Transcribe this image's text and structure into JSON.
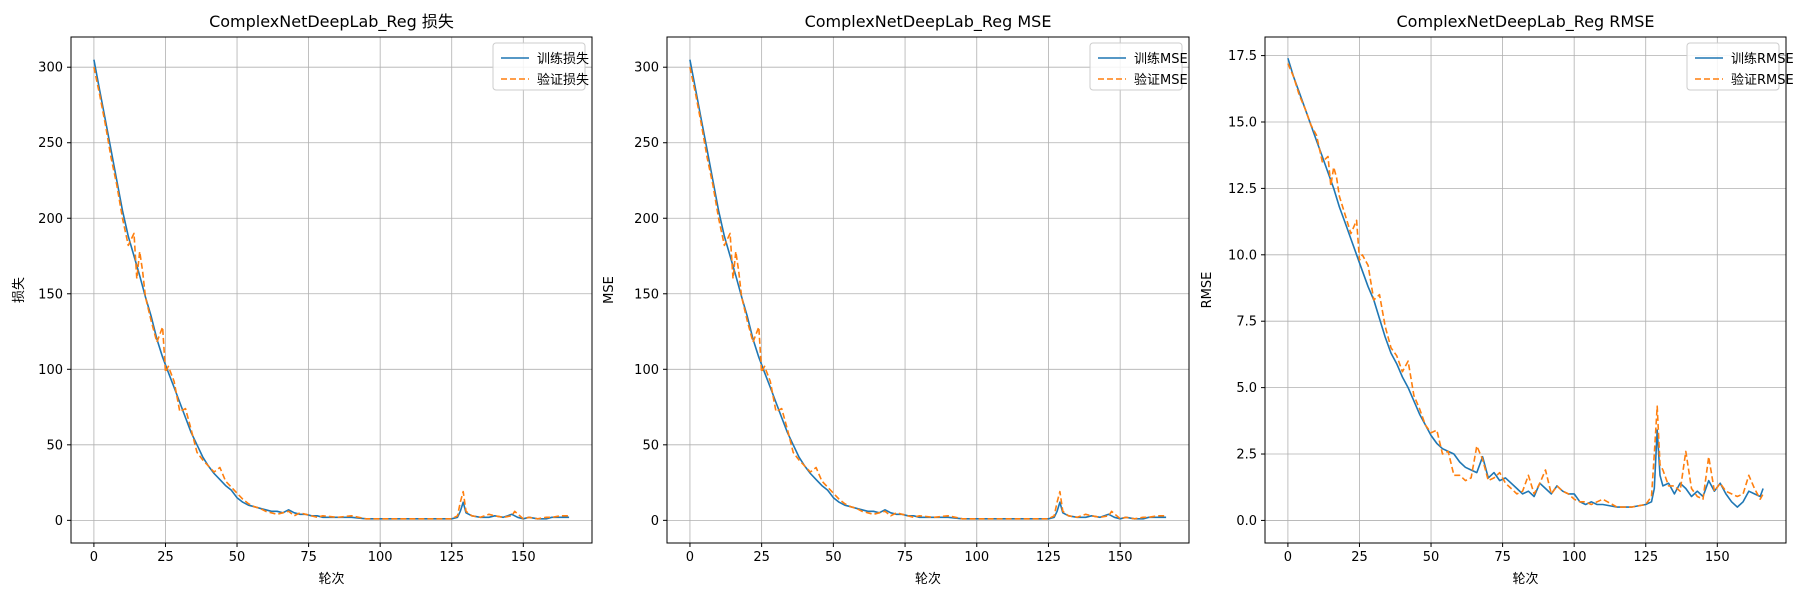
{
  "colors": {
    "series_a": "#1f77b4",
    "series_b": "#ff7f0e",
    "grid": "#b0b0b0",
    "axes": "#000000"
  },
  "chart_data": [
    {
      "type": "line",
      "title": "ComplexNetDeepLab_Reg 损失",
      "xlabel": "轮次",
      "ylabel": "损失",
      "xlim": [
        -8,
        174
      ],
      "ylim": [
        -15,
        320
      ],
      "xticks": [
        0,
        25,
        50,
        75,
        100,
        125,
        150
      ],
      "yticks": [
        0,
        50,
        100,
        150,
        200,
        250,
        300
      ],
      "grid": true,
      "legend": "top-right",
      "series": [
        {
          "name": "训练损失",
          "style": "solid",
          "x": [
            0,
            2,
            4,
            6,
            8,
            10,
            12,
            14,
            16,
            18,
            20,
            22,
            24,
            26,
            28,
            30,
            32,
            34,
            36,
            38,
            40,
            42,
            44,
            46,
            48,
            50,
            52,
            54,
            56,
            58,
            60,
            62,
            64,
            66,
            68,
            70,
            72,
            74,
            76,
            78,
            80,
            85,
            90,
            95,
            100,
            105,
            110,
            115,
            120,
            125,
            127,
            128,
            129,
            130,
            132,
            135,
            138,
            140,
            143,
            146,
            148,
            150,
            152,
            155,
            158,
            160,
            163,
            166
          ],
          "y": [
            305,
            285,
            265,
            245,
            225,
            205,
            188,
            175,
            162,
            148,
            135,
            120,
            108,
            98,
            88,
            78,
            68,
            58,
            50,
            42,
            36,
            31,
            27,
            23,
            20,
            15,
            12,
            10,
            9,
            8,
            7,
            6,
            6,
            5,
            7,
            5,
            4,
            4,
            3,
            3,
            2,
            2,
            2,
            1,
            1,
            1,
            1,
            1,
            1,
            1,
            2,
            6,
            12,
            5,
            3,
            2,
            2,
            3,
            2,
            4,
            2,
            1,
            2,
            1,
            1,
            2,
            2,
            2
          ]
        },
        {
          "name": "验证损失",
          "style": "dashed",
          "x": [
            0,
            2,
            4,
            6,
            8,
            10,
            12,
            14,
            15,
            16,
            17,
            18,
            20,
            22,
            24,
            25,
            26,
            28,
            30,
            32,
            34,
            36,
            38,
            40,
            42,
            44,
            46,
            48,
            50,
            52,
            54,
            56,
            58,
            60,
            62,
            64,
            66,
            68,
            70,
            72,
            74,
            76,
            78,
            80,
            85,
            90,
            95,
            100,
            105,
            110,
            115,
            120,
            125,
            127,
            128,
            129,
            130,
            132,
            135,
            138,
            140,
            143,
            146,
            147,
            150,
            152,
            155,
            158,
            160,
            163,
            166
          ],
          "y": [
            300,
            282,
            262,
            240,
            222,
            200,
            182,
            190,
            160,
            178,
            165,
            148,
            132,
            118,
            128,
            98,
            102,
            92,
            72,
            74,
            60,
            45,
            40,
            36,
            32,
            35,
            26,
            22,
            18,
            14,
            11,
            9,
            8,
            6,
            5,
            4,
            5,
            6,
            3,
            5,
            4,
            3,
            2,
            3,
            2,
            3,
            1,
            1,
            1,
            1,
            1,
            1,
            1,
            3,
            12,
            19,
            6,
            3,
            2,
            4,
            3,
            2,
            3,
            6,
            1,
            2,
            1,
            2,
            2,
            3,
            3
          ]
        }
      ]
    },
    {
      "type": "line",
      "title": "ComplexNetDeepLab_Reg MSE",
      "xlabel": "轮次",
      "ylabel": "MSE",
      "xlim": [
        -8,
        174
      ],
      "ylim": [
        -15,
        320
      ],
      "xticks": [
        0,
        25,
        50,
        75,
        100,
        125,
        150
      ],
      "yticks": [
        0,
        50,
        100,
        150,
        200,
        250,
        300
      ],
      "grid": true,
      "legend": "top-right",
      "series": [
        {
          "name": "训练MSE",
          "style": "solid",
          "x": [
            0,
            2,
            4,
            6,
            8,
            10,
            12,
            14,
            16,
            18,
            20,
            22,
            24,
            26,
            28,
            30,
            32,
            34,
            36,
            38,
            40,
            42,
            44,
            46,
            48,
            50,
            52,
            54,
            56,
            58,
            60,
            62,
            64,
            66,
            68,
            70,
            72,
            74,
            76,
            78,
            80,
            85,
            90,
            95,
            100,
            105,
            110,
            115,
            120,
            125,
            127,
            128,
            129,
            130,
            132,
            135,
            138,
            140,
            143,
            146,
            148,
            150,
            152,
            155,
            158,
            160,
            163,
            166
          ],
          "y": [
            305,
            285,
            265,
            245,
            225,
            205,
            188,
            175,
            162,
            148,
            135,
            120,
            108,
            98,
            88,
            78,
            68,
            58,
            50,
            42,
            36,
            31,
            27,
            23,
            20,
            15,
            12,
            10,
            9,
            8,
            7,
            6,
            6,
            5,
            7,
            5,
            4,
            4,
            3,
            3,
            2,
            2,
            2,
            1,
            1,
            1,
            1,
            1,
            1,
            1,
            2,
            6,
            12,
            5,
            3,
            2,
            2,
            3,
            2,
            4,
            2,
            1,
            2,
            1,
            1,
            2,
            2,
            2
          ]
        },
        {
          "name": "验证MSE",
          "style": "dashed",
          "x": [
            0,
            2,
            4,
            6,
            8,
            10,
            12,
            14,
            15,
            16,
            17,
            18,
            20,
            22,
            24,
            25,
            26,
            28,
            30,
            32,
            34,
            36,
            38,
            40,
            42,
            44,
            46,
            48,
            50,
            52,
            54,
            56,
            58,
            60,
            62,
            64,
            66,
            68,
            70,
            72,
            74,
            76,
            78,
            80,
            85,
            90,
            95,
            100,
            105,
            110,
            115,
            120,
            125,
            127,
            128,
            129,
            130,
            132,
            135,
            138,
            140,
            143,
            146,
            147,
            150,
            152,
            155,
            158,
            160,
            163,
            166
          ],
          "y": [
            300,
            282,
            262,
            240,
            222,
            200,
            182,
            190,
            160,
            178,
            165,
            148,
            132,
            118,
            128,
            98,
            102,
            92,
            72,
            74,
            60,
            45,
            40,
            36,
            32,
            35,
            26,
            22,
            18,
            14,
            11,
            9,
            8,
            6,
            5,
            4,
            5,
            6,
            3,
            5,
            4,
            3,
            2,
            3,
            2,
            3,
            1,
            1,
            1,
            1,
            1,
            1,
            1,
            3,
            12,
            19,
            6,
            3,
            2,
            4,
            3,
            2,
            3,
            6,
            1,
            2,
            1,
            2,
            2,
            3,
            3
          ]
        }
      ]
    },
    {
      "type": "line",
      "title": "ComplexNetDeepLab_Reg RMSE",
      "xlabel": "轮次",
      "ylabel": "RMSE",
      "xlim": [
        -8,
        174
      ],
      "ylim": [
        -0.85,
        18.2
      ],
      "xticks": [
        0,
        25,
        50,
        75,
        100,
        125,
        150
      ],
      "yticks": [
        "0.0",
        "2.5",
        "5.0",
        "7.5",
        "10.0",
        "12.5",
        "15.0",
        "17.5"
      ],
      "grid": true,
      "legend": "top-right",
      "series": [
        {
          "name": "训练RMSE",
          "style": "solid",
          "x": [
            0,
            2,
            4,
            6,
            8,
            10,
            12,
            14,
            16,
            18,
            20,
            22,
            24,
            26,
            28,
            30,
            32,
            34,
            36,
            38,
            40,
            42,
            44,
            46,
            48,
            50,
            52,
            54,
            56,
            58,
            60,
            62,
            64,
            66,
            68,
            70,
            72,
            74,
            76,
            78,
            80,
            82,
            84,
            86,
            88,
            90,
            92,
            94,
            96,
            98,
            100,
            102,
            104,
            106,
            108,
            110,
            115,
            120,
            125,
            127,
            128,
            129,
            130,
            131,
            133,
            135,
            137,
            139,
            141,
            143,
            145,
            147,
            149,
            151,
            153,
            155,
            157,
            159,
            161,
            163,
            165,
            166
          ],
          "y": [
            17.4,
            16.7,
            16.1,
            15.5,
            14.9,
            14.3,
            13.7,
            13.1,
            12.5,
            11.8,
            11.2,
            10.6,
            10.0,
            9.4,
            8.8,
            8.3,
            7.6,
            6.9,
            6.3,
            5.9,
            5.4,
            5.0,
            4.5,
            4.0,
            3.6,
            3.2,
            2.9,
            2.7,
            2.6,
            2.5,
            2.2,
            2.0,
            1.9,
            1.8,
            2.4,
            1.6,
            1.8,
            1.5,
            1.6,
            1.4,
            1.2,
            1.0,
            1.1,
            0.9,
            1.4,
            1.2,
            1.0,
            1.3,
            1.1,
            1.0,
            1.0,
            0.7,
            0.6,
            0.7,
            0.6,
            0.6,
            0.5,
            0.5,
            0.6,
            0.7,
            1.2,
            3.4,
            1.7,
            1.3,
            1.4,
            1.0,
            1.4,
            1.2,
            0.9,
            1.1,
            0.9,
            1.5,
            1.1,
            1.4,
            1.0,
            0.7,
            0.5,
            0.7,
            1.1,
            1.0,
            0.9,
            1.2
          ]
        },
        {
          "name": "验证RMSE",
          "style": "dashed",
          "x": [
            0,
            2,
            4,
            6,
            8,
            10,
            12,
            14,
            15,
            16,
            17,
            18,
            20,
            22,
            24,
            25,
            26,
            28,
            30,
            32,
            34,
            36,
            38,
            40,
            42,
            44,
            46,
            48,
            50,
            52,
            54,
            56,
            58,
            60,
            62,
            64,
            66,
            68,
            70,
            72,
            74,
            76,
            78,
            80,
            82,
            84,
            86,
            88,
            90,
            92,
            94,
            96,
            98,
            100,
            102,
            104,
            106,
            108,
            110,
            115,
            120,
            125,
            127,
            128,
            129,
            130,
            131,
            133,
            135,
            137,
            139,
            141,
            143,
            145,
            147,
            149,
            151,
            153,
            155,
            157,
            159,
            161,
            163,
            165,
            166
          ],
          "y": [
            17.2,
            16.7,
            16.0,
            15.5,
            14.9,
            14.5,
            13.5,
            13.7,
            12.6,
            13.3,
            12.9,
            12.2,
            11.5,
            10.8,
            11.3,
            9.8,
            10.0,
            9.6,
            8.3,
            8.5,
            7.3,
            6.5,
            6.2,
            5.6,
            6.0,
            4.7,
            4.2,
            3.6,
            3.3,
            3.4,
            2.5,
            2.6,
            1.7,
            1.7,
            1.5,
            1.6,
            2.8,
            2.3,
            1.5,
            1.6,
            1.8,
            1.4,
            1.2,
            1.0,
            1.1,
            1.7,
            1.0,
            1.4,
            1.9,
            1.0,
            1.3,
            1.1,
            1.0,
            0.8,
            0.7,
            0.7,
            0.6,
            0.7,
            0.8,
            0.5,
            0.5,
            0.6,
            0.9,
            2.5,
            4.3,
            2.1,
            1.9,
            1.3,
            1.3,
            1.1,
            2.6,
            1.2,
            0.9,
            0.8,
            2.4,
            1.1,
            1.4,
            1.1,
            1.0,
            0.9,
            1.0,
            1.7,
            1.2,
            0.8,
            1.0
          ]
        }
      ]
    }
  ]
}
